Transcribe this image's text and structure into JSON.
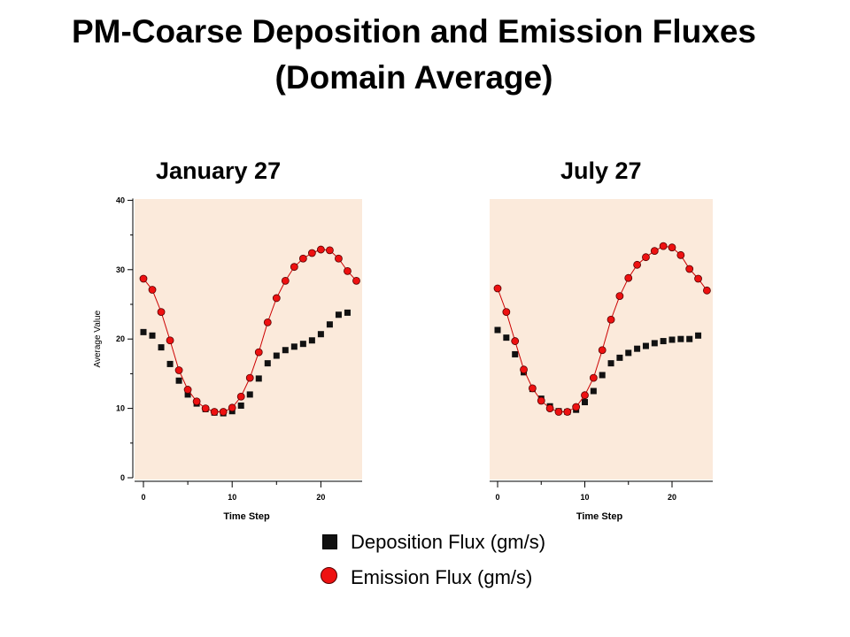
{
  "title_line1": "PM-Coarse Deposition and Emission Fluxes",
  "title_line2": "(Domain Average)",
  "colors": {
    "plot_background": "#fbeadb",
    "deposition_marker": "#111111",
    "emission_marker": "#ee1111",
    "emission_line": "#cc0000"
  },
  "legend": {
    "deposition_label": "Deposition Flux (gm/s)",
    "emission_label": "Emission Flux (gm/s)"
  },
  "chart_data": [
    {
      "type": "scatter",
      "title": "January 27",
      "xlabel": "Time Step",
      "ylabel": "Average Value",
      "xlim": [
        0,
        24
      ],
      "ylim": [
        0,
        40
      ],
      "xticks": [
        "0",
        "10",
        "20"
      ],
      "yticks": [
        "0",
        "10",
        "20",
        "30",
        "40"
      ],
      "x": [
        0,
        1,
        2,
        3,
        4,
        5,
        6,
        7,
        8,
        9,
        10,
        11,
        12,
        13,
        14,
        15,
        16,
        17,
        18,
        19,
        20,
        21,
        22,
        23,
        24
      ],
      "series": [
        {
          "name": "Deposition Flux (gm/s)",
          "marker": "square",
          "line": false,
          "values": [
            21.0,
            20.5,
            18.8,
            16.4,
            14.0,
            12.0,
            10.7,
            9.9,
            9.4,
            9.3,
            9.6,
            10.4,
            12.0,
            14.3,
            16.5,
            17.6,
            18.4,
            18.9,
            19.3,
            19.8,
            20.7,
            22.1,
            23.5,
            23.8,
            null
          ]
        },
        {
          "name": "Emission Flux (gm/s)",
          "marker": "circle",
          "line": true,
          "values": [
            28.7,
            27.1,
            23.9,
            19.8,
            15.5,
            12.7,
            11.0,
            10.0,
            9.5,
            9.5,
            10.1,
            11.7,
            14.4,
            18.1,
            22.4,
            25.9,
            28.4,
            30.4,
            31.6,
            32.4,
            32.9,
            32.8,
            31.6,
            29.8,
            28.4
          ]
        }
      ]
    },
    {
      "type": "scatter",
      "title": "July 27",
      "xlabel": "Time Step",
      "ylabel": "",
      "xlim": [
        0,
        24
      ],
      "ylim": [
        0,
        40
      ],
      "xticks": [
        "0",
        "10",
        "20"
      ],
      "yticks": [],
      "x": [
        0,
        1,
        2,
        3,
        4,
        5,
        6,
        7,
        8,
        9,
        10,
        11,
        12,
        13,
        14,
        15,
        16,
        17,
        18,
        19,
        20,
        21,
        22,
        23,
        24
      ],
      "series": [
        {
          "name": "Deposition Flux (gm/s)",
          "marker": "square",
          "line": false,
          "values": [
            21.3,
            20.2,
            17.8,
            15.2,
            12.8,
            11.4,
            10.3,
            9.6,
            9.5,
            9.8,
            10.9,
            12.5,
            14.8,
            16.5,
            17.3,
            18.0,
            18.6,
            19.0,
            19.4,
            19.7,
            19.9,
            20.0,
            20.0,
            20.5,
            null
          ]
        },
        {
          "name": "Emission Flux (gm/s)",
          "marker": "circle",
          "line": true,
          "values": [
            27.3,
            23.9,
            19.7,
            15.6,
            12.9,
            11.1,
            10.0,
            9.5,
            9.5,
            10.2,
            11.9,
            14.4,
            18.4,
            22.8,
            26.2,
            28.8,
            30.7,
            31.8,
            32.7,
            33.4,
            33.2,
            32.1,
            30.1,
            28.7,
            27.0
          ]
        }
      ]
    }
  ]
}
